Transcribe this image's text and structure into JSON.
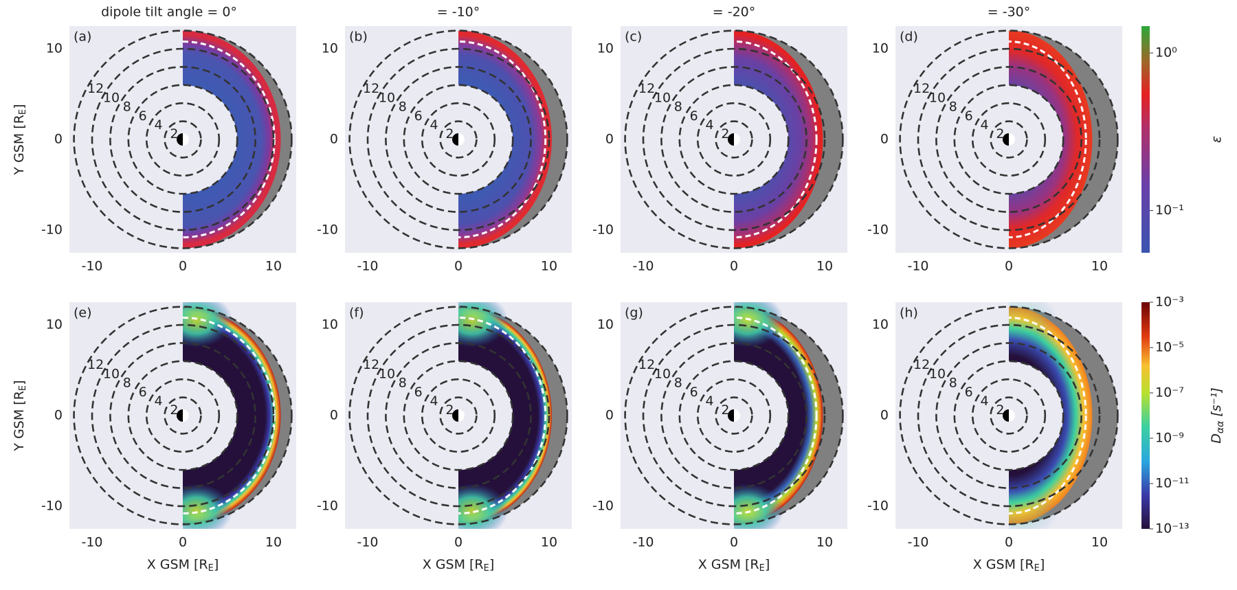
{
  "figure": {
    "column_titles": [
      "dipole tilt angle = 0°",
      "= -10°",
      "= -20°",
      "= -30°"
    ],
    "panel_labels": [
      "(a)",
      "(b)",
      "(c)",
      "(d)",
      "(e)",
      "(f)",
      "(g)",
      "(h)"
    ],
    "x_label": {
      "text": "X GSM [R",
      "sub": "E",
      "end": "]"
    },
    "y_label": {
      "text": "Y GSM [R",
      "sub": "E",
      "end": "]"
    },
    "xlim": [
      -12.5,
      12.5
    ],
    "ylim": [
      -12.5,
      12.5
    ],
    "xticks": [
      -10,
      0,
      10
    ],
    "yticks": [
      -10,
      0,
      10
    ],
    "shells": [
      2,
      4,
      6,
      8,
      10,
      12
    ],
    "magnetopause_x": [
      10.8,
      10.3,
      9.8,
      9.2
    ],
    "colorbars": [
      {
        "label": "ε",
        "log": true,
        "lim": [
          0.054,
          1.48
        ],
        "ticks": [
          {
            "value": 1,
            "label": "10⁰"
          },
          {
            "value": 0.1,
            "label": "10⁻¹"
          }
        ]
      },
      {
        "label": "D",
        "label_sub": "αα",
        "label_unit": " [s⁻¹]",
        "log": true,
        "lim": [
          1e-13,
          0.001
        ],
        "ticks": [
          {
            "value": 0.001,
            "label": "10⁻³"
          },
          {
            "value": 1e-05,
            "label": "10⁻⁵"
          },
          {
            "value": 1e-07,
            "label": "10⁻⁷"
          },
          {
            "value": 1e-09,
            "label": "10⁻⁹"
          },
          {
            "value": 1e-11,
            "label": "10⁻¹¹"
          },
          {
            "value": 1e-13,
            "label": "10⁻¹³"
          }
        ]
      }
    ]
  }
}
